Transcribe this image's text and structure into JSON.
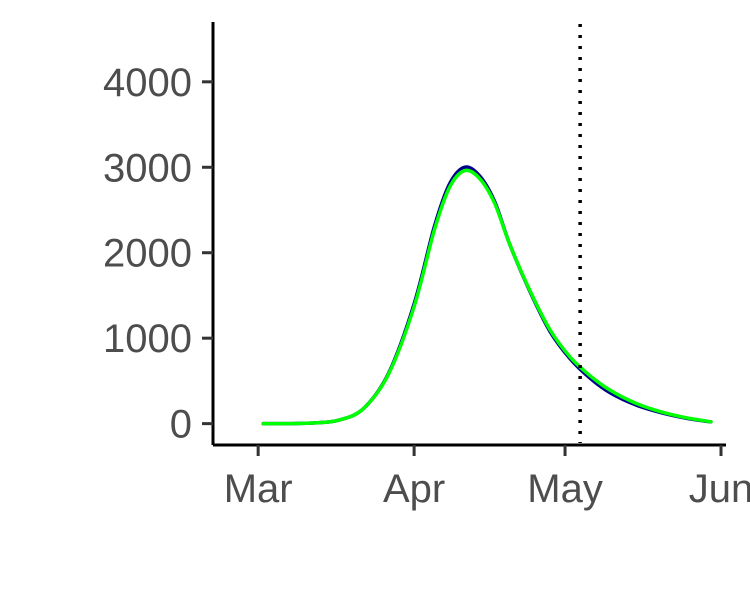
{
  "chart_data": {
    "type": "line",
    "title": "",
    "xlabel": "",
    "ylabel": "",
    "x_axis": {
      "type": "date",
      "range": [
        "2020-02-25",
        "2020-06-01"
      ],
      "ticks": [
        {
          "date": "2020-03-01",
          "label": "Mar"
        },
        {
          "date": "2020-04-01",
          "label": "Apr"
        },
        {
          "date": "2020-05-01",
          "label": "May"
        },
        {
          "date": "2020-06-01",
          "label": "Jun"
        }
      ]
    },
    "y_axis": {
      "range": [
        -250,
        4700
      ],
      "ticks": [
        {
          "value": 0,
          "label": "0"
        },
        {
          "value": 1000,
          "label": "1000"
        },
        {
          "value": 2000,
          "label": "2000"
        },
        {
          "value": 3000,
          "label": "3000"
        },
        {
          "value": 4000,
          "label": "4000"
        }
      ]
    },
    "grid": false,
    "legend": "none",
    "reference_line": {
      "date": "2020-05-04",
      "style": "dotted",
      "color": "#000000"
    },
    "series": [
      {
        "color": "#00008b",
        "points": [
          [
            "2020-03-02",
            0
          ],
          [
            "2020-03-07",
            1
          ],
          [
            "2020-03-12",
            8
          ],
          [
            "2020-03-17",
            40
          ],
          [
            "2020-03-22",
            180
          ],
          [
            "2020-03-27",
            600
          ],
          [
            "2020-04-01",
            1400
          ],
          [
            "2020-04-05",
            2300
          ],
          [
            "2020-04-08",
            2800
          ],
          [
            "2020-04-11",
            3000
          ],
          [
            "2020-04-14",
            2900
          ],
          [
            "2020-04-17",
            2600
          ],
          [
            "2020-04-20",
            2100
          ],
          [
            "2020-04-24",
            1550
          ],
          [
            "2020-04-28",
            1080
          ],
          [
            "2020-05-02",
            760
          ],
          [
            "2020-05-06",
            530
          ],
          [
            "2020-05-10",
            360
          ],
          [
            "2020-05-15",
            220
          ],
          [
            "2020-05-20",
            130
          ],
          [
            "2020-05-25",
            65
          ],
          [
            "2020-05-30",
            20
          ]
        ]
      },
      {
        "color": "#00ff00",
        "points": [
          [
            "2020-03-02",
            0
          ],
          [
            "2020-03-07",
            1
          ],
          [
            "2020-03-12",
            8
          ],
          [
            "2020-03-17",
            40
          ],
          [
            "2020-03-22",
            180
          ],
          [
            "2020-03-27",
            590
          ],
          [
            "2020-04-01",
            1370
          ],
          [
            "2020-04-05",
            2260
          ],
          [
            "2020-04-08",
            2760
          ],
          [
            "2020-04-11",
            2960
          ],
          [
            "2020-04-14",
            2870
          ],
          [
            "2020-04-17",
            2580
          ],
          [
            "2020-04-20",
            2100
          ],
          [
            "2020-04-24",
            1560
          ],
          [
            "2020-04-28",
            1100
          ],
          [
            "2020-05-02",
            780
          ],
          [
            "2020-05-06",
            560
          ],
          [
            "2020-05-10",
            390
          ],
          [
            "2020-05-15",
            240
          ],
          [
            "2020-05-20",
            140
          ],
          [
            "2020-05-25",
            70
          ],
          [
            "2020-05-30",
            22
          ]
        ]
      }
    ]
  }
}
